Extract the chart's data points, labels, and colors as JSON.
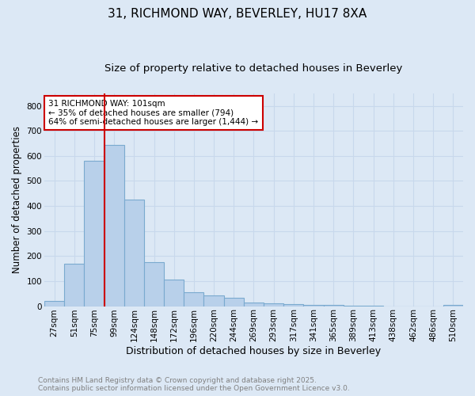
{
  "title_line1": "31, RICHMOND WAY, BEVERLEY, HU17 8XA",
  "title_line2": "Size of property relative to detached houses in Beverley",
  "xlabel": "Distribution of detached houses by size in Beverley",
  "ylabel": "Number of detached properties",
  "categories": [
    "27sqm",
    "51sqm",
    "75sqm",
    "99sqm",
    "124sqm",
    "148sqm",
    "172sqm",
    "196sqm",
    "220sqm",
    "244sqm",
    "269sqm",
    "293sqm",
    "317sqm",
    "341sqm",
    "365sqm",
    "389sqm",
    "413sqm",
    "438sqm",
    "462sqm",
    "486sqm",
    "510sqm"
  ],
  "values": [
    20,
    170,
    580,
    645,
    425,
    175,
    105,
    57,
    42,
    32,
    15,
    10,
    8,
    6,
    4,
    2,
    1,
    0,
    0,
    0,
    5
  ],
  "bar_color": "#b8d0ea",
  "bar_edge_color": "#7aaacf",
  "grid_color": "#c8d8ec",
  "background_color": "#dce8f5",
  "red_line_x": 3,
  "red_line_color": "#cc0000",
  "annotation_text": "31 RICHMOND WAY: 101sqm\n← 35% of detached houses are smaller (794)\n64% of semi-detached houses are larger (1,444) →",
  "annotation_box_color": "#ffffff",
  "annotation_box_edge": "#cc0000",
  "ylim": [
    0,
    850
  ],
  "yticks": [
    0,
    100,
    200,
    300,
    400,
    500,
    600,
    700,
    800
  ],
  "footer_line1": "Contains HM Land Registry data © Crown copyright and database right 2025.",
  "footer_line2": "Contains public sector information licensed under the Open Government Licence v3.0.",
  "footer_color": "#808080",
  "title_fontsize": 11,
  "subtitle_fontsize": 9.5,
  "xlabel_fontsize": 9,
  "ylabel_fontsize": 8.5,
  "tick_fontsize": 7.5,
  "annotation_fontsize": 7.5,
  "footer_fontsize": 6.5
}
